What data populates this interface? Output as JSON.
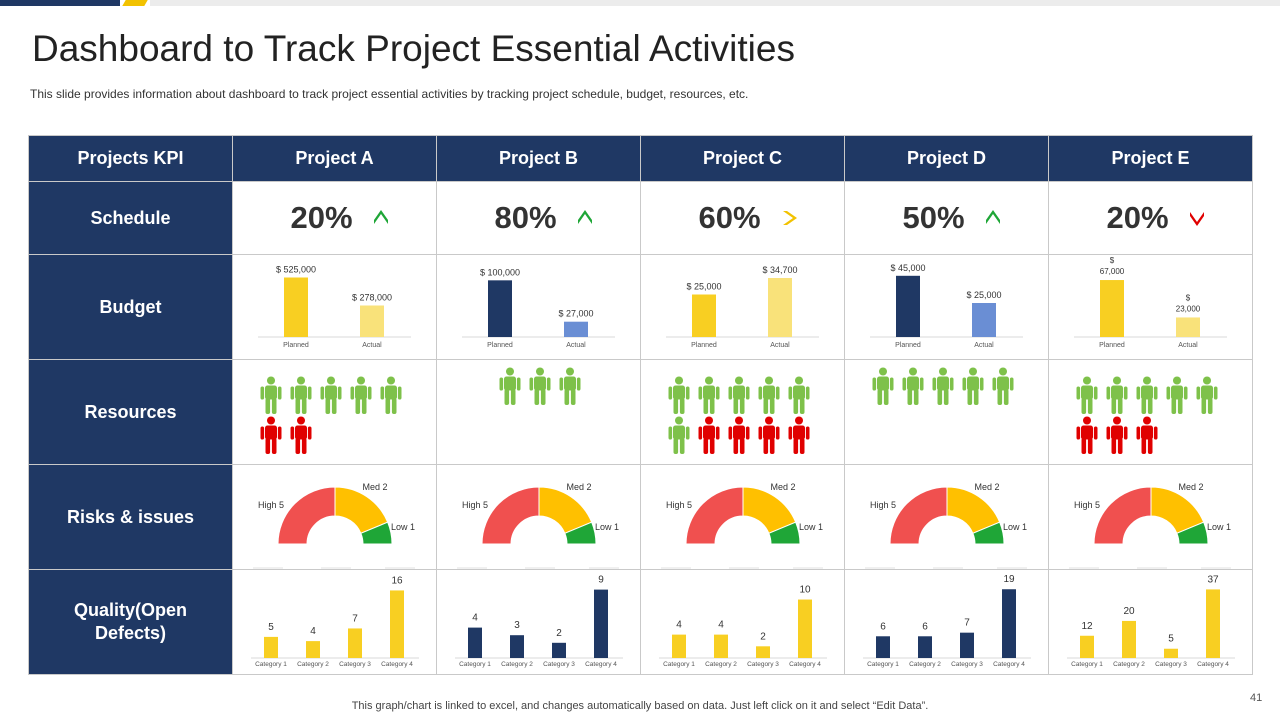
{
  "header": {
    "title": "Dashboard to Track Project Essential Activities",
    "subtitle": "This slide provides  information about dashboard to track project essential activities by tracking project schedule, budget, resources, etc."
  },
  "table": {
    "kpi_header": "Projects KPI",
    "row_labels": {
      "schedule": "Schedule",
      "budget": "Budget",
      "resources": "Resources",
      "risks": "Risks & issues",
      "quality_line1": "Quality(Open",
      "quality_line2": "Defects)"
    }
  },
  "colors": {
    "navy": "#1f3864",
    "yellow": "#f8cf22",
    "light_yellow": "#f9e27a",
    "blue": "#6a8ed4",
    "green": "#7ec14a",
    "red": "#e00000",
    "gauge_red": "#f0504f",
    "gauge_yellow": "#ffc000",
    "gauge_green": "#1fa637"
  },
  "projects": [
    {
      "name": "Project A",
      "schedule": "20%",
      "arrow": "up-green"
    },
    {
      "name": "Project B",
      "schedule": "80%",
      "arrow": "up-green"
    },
    {
      "name": "Project C",
      "schedule": "60%",
      "arrow": "right-yellow"
    },
    {
      "name": "Project D",
      "schedule": "50%",
      "arrow": "up-green"
    },
    {
      "name": "Project E",
      "schedule": "20%",
      "arrow": "down-red"
    }
  ],
  "resources": [
    {
      "available": 5,
      "unavailable": 2
    },
    {
      "available": 3,
      "unavailable": 0
    },
    {
      "available": 6,
      "unavailable": 4
    },
    {
      "available": 5,
      "unavailable": 0
    },
    {
      "available": 5,
      "unavailable": 3
    }
  ],
  "chart_data": [
    {
      "id": "budget-a",
      "type": "bar",
      "categories": [
        "Planned",
        "Actual"
      ],
      "values": [
        525000,
        278000
      ],
      "labels": [
        "$ 525,000",
        "$ 278,000"
      ],
      "colors": [
        "#f8cf22",
        "#f9e27a"
      ],
      "ylim": [
        0,
        600000
      ]
    },
    {
      "id": "budget-b",
      "type": "bar",
      "categories": [
        "Planned",
        "Actual"
      ],
      "values": [
        100000,
        27000
      ],
      "labels": [
        "$ 100,000",
        "$ 27,000"
      ],
      "colors": [
        "#1f3864",
        "#6a8ed4"
      ],
      "ylim": [
        0,
        120000
      ]
    },
    {
      "id": "budget-c",
      "type": "bar",
      "categories": [
        "Planned",
        "Actual"
      ],
      "values": [
        25000,
        34700
      ],
      "labels": [
        "$ 25,000",
        "$ 34,700"
      ],
      "colors": [
        "#f8cf22",
        "#f9e27a"
      ],
      "ylim": [
        0,
        40000
      ]
    },
    {
      "id": "budget-d",
      "type": "bar",
      "categories": [
        "Planned",
        "Actual"
      ],
      "values": [
        45000,
        25000
      ],
      "labels": [
        "$ 45,000",
        "$ 25,000"
      ],
      "colors": [
        "#1f3864",
        "#6a8ed4"
      ],
      "ylim": [
        0,
        50000
      ]
    },
    {
      "id": "budget-e",
      "type": "bar",
      "categories": [
        "Planned",
        "Actual"
      ],
      "values": [
        67000,
        23000
      ],
      "labels": [
        "$ 67,000",
        "$ 23,000"
      ],
      "colors": [
        "#f8cf22",
        "#f9e27a"
      ],
      "ylim": [
        0,
        80000
      ]
    },
    {
      "id": "risk-a",
      "type": "pie",
      "categories": [
        "High",
        "Med",
        "Low"
      ],
      "values": [
        5,
        2,
        1
      ],
      "labels": [
        "High 5",
        "Med 2",
        "Low 1"
      ],
      "colors": [
        "#f0504f",
        "#ffc000",
        "#1fa637"
      ]
    },
    {
      "id": "risk-b",
      "type": "pie",
      "categories": [
        "High",
        "Med",
        "Low"
      ],
      "values": [
        5,
        2,
        1
      ],
      "labels": [
        "High 5",
        "Med 2",
        "Low 1"
      ],
      "colors": [
        "#f0504f",
        "#ffc000",
        "#1fa637"
      ]
    },
    {
      "id": "risk-c",
      "type": "pie",
      "categories": [
        "High",
        "Med",
        "Low"
      ],
      "values": [
        5,
        2,
        1
      ],
      "labels": [
        "High 5",
        "Med 2",
        "Low 1"
      ],
      "colors": [
        "#f0504f",
        "#ffc000",
        "#1fa637"
      ]
    },
    {
      "id": "risk-d",
      "type": "pie",
      "categories": [
        "High",
        "Med",
        "Low"
      ],
      "values": [
        5,
        2,
        1
      ],
      "labels": [
        "High 5",
        "Med 2",
        "Low 1"
      ],
      "colors": [
        "#f0504f",
        "#ffc000",
        "#1fa637"
      ]
    },
    {
      "id": "risk-e",
      "type": "pie",
      "categories": [
        "High",
        "Med",
        "Low"
      ],
      "values": [
        5,
        2,
        1
      ],
      "labels": [
        "High 5",
        "Med 2",
        "Low 1"
      ],
      "colors": [
        "#f0504f",
        "#ffc000",
        "#1fa637"
      ]
    },
    {
      "id": "quality-a",
      "type": "bar",
      "categories": [
        "Category 1",
        "Category 2",
        "Category 3",
        "Category 4"
      ],
      "values": [
        5,
        4,
        7,
        16
      ],
      "color": "#f8cf22",
      "ylim": [
        0,
        18
      ]
    },
    {
      "id": "quality-b",
      "type": "bar",
      "categories": [
        "Category 1",
        "Category 2",
        "Category 3",
        "Category 4"
      ],
      "values": [
        4,
        3,
        2,
        9
      ],
      "color": "#1f3864",
      "ylim": [
        0,
        10
      ]
    },
    {
      "id": "quality-c",
      "type": "bar",
      "categories": [
        "Category 1",
        "Category 2",
        "Category 3",
        "Category 4"
      ],
      "values": [
        4,
        4,
        2,
        10
      ],
      "color": "#f8cf22",
      "ylim": [
        0,
        13
      ]
    },
    {
      "id": "quality-d",
      "type": "bar",
      "categories": [
        "Category 1",
        "Category 2",
        "Category 3",
        "Category 4"
      ],
      "values": [
        6,
        6,
        7,
        19
      ],
      "color": "#1f3864",
      "ylim": [
        0,
        21
      ]
    },
    {
      "id": "quality-e",
      "type": "bar",
      "categories": [
        "Category 1",
        "Category 2",
        "Category 3",
        "Category 4"
      ],
      "values": [
        12,
        20,
        5,
        37
      ],
      "color": "#f8cf22",
      "ylim": [
        0,
        41
      ]
    }
  ],
  "footer": {
    "note": "This graph/chart is linked to excel, and changes automatically based on data. Just left click on it and select “Edit Data”.",
    "page_number": "41"
  }
}
